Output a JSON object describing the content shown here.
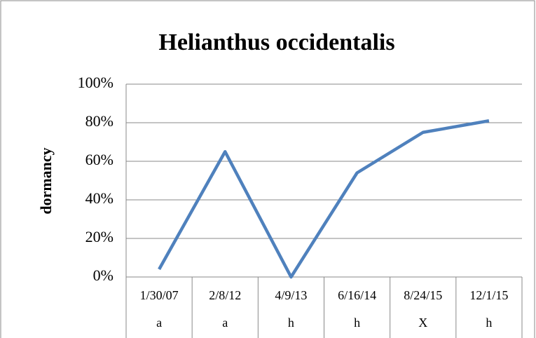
{
  "chart_data": {
    "type": "line",
    "title": "Helianthus occidentalis",
    "y_label": "dormancy",
    "categories": [
      "1/30/07",
      "2/8/12",
      "4/9/13",
      "6/16/14",
      "8/24/15",
      "12/1/15"
    ],
    "subcategories": [
      "a",
      "a",
      "h",
      "h",
      "X",
      "h"
    ],
    "series": [
      {
        "name": "dormancy",
        "color": "#4f81bd",
        "values": [
          4,
          65,
          0,
          54,
          75,
          81
        ]
      }
    ],
    "ylim": [
      0,
      100
    ],
    "yticks": [
      {
        "value": 0,
        "label": "0%"
      },
      {
        "value": 20,
        "label": "20%"
      },
      {
        "value": 40,
        "label": "40%"
      },
      {
        "value": 60,
        "label": "60%"
      },
      {
        "value": 80,
        "label": "80%"
      },
      {
        "value": 100,
        "label": "100%"
      }
    ],
    "grid": true
  }
}
